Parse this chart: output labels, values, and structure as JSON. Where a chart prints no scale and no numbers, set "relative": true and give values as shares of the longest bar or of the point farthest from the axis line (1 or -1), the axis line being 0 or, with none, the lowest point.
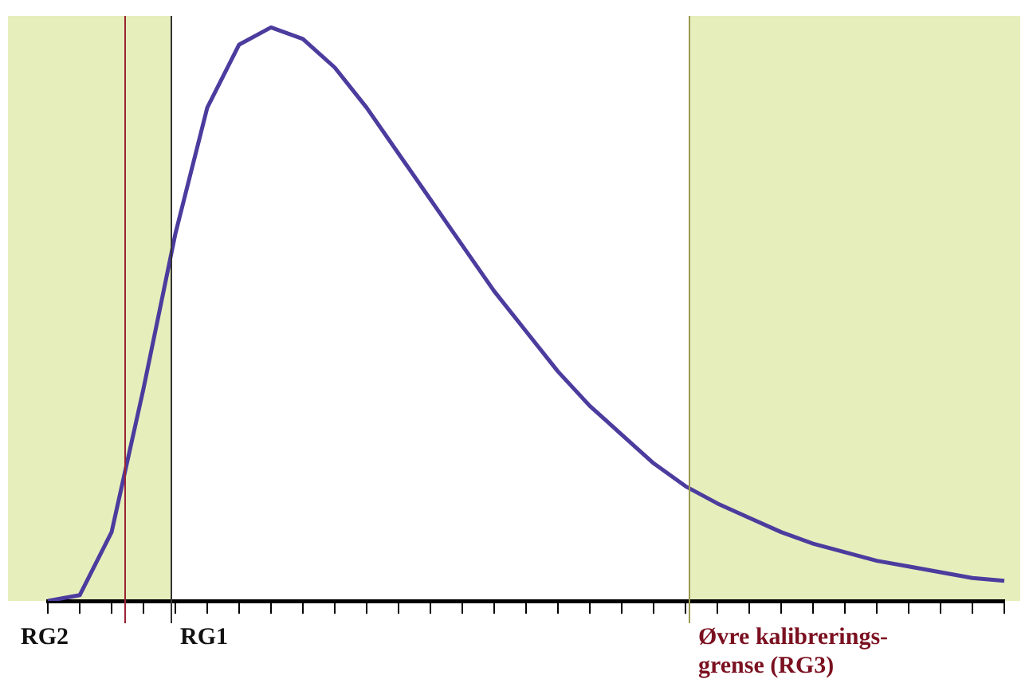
{
  "chart_data": {
    "type": "line",
    "relative": true,
    "categories": [
      null,
      null,
      null,
      null,
      null,
      null,
      null,
      null,
      null,
      null,
      null,
      null,
      null,
      null,
      null,
      null,
      null,
      null,
      null,
      null,
      null,
      null,
      null,
      null,
      null,
      null,
      null,
      null,
      null,
      null,
      null
    ],
    "series": [
      {
        "color": "#4b3c9e",
        "values": [
          0,
          0.01,
          0.12,
          0.37,
          0.64,
          0.86,
          0.97,
          1,
          0.98,
          0.93,
          0.86,
          0.78,
          0.7,
          0.62,
          0.54,
          0.47,
          0.4,
          0.34,
          0.29,
          0.24,
          0.2,
          0.17,
          0.145,
          0.12,
          0.1,
          0.085,
          0.07,
          0.06,
          0.05,
          0.04,
          0.035
        ]
      }
    ],
    "annotations": [
      "RG2",
      "RG1",
      "Øvre kalibrerings-grense (RG3)"
    ],
    "grid": false,
    "legend": false,
    "marker": "none",
    "line_style": "solid"
  }
}
